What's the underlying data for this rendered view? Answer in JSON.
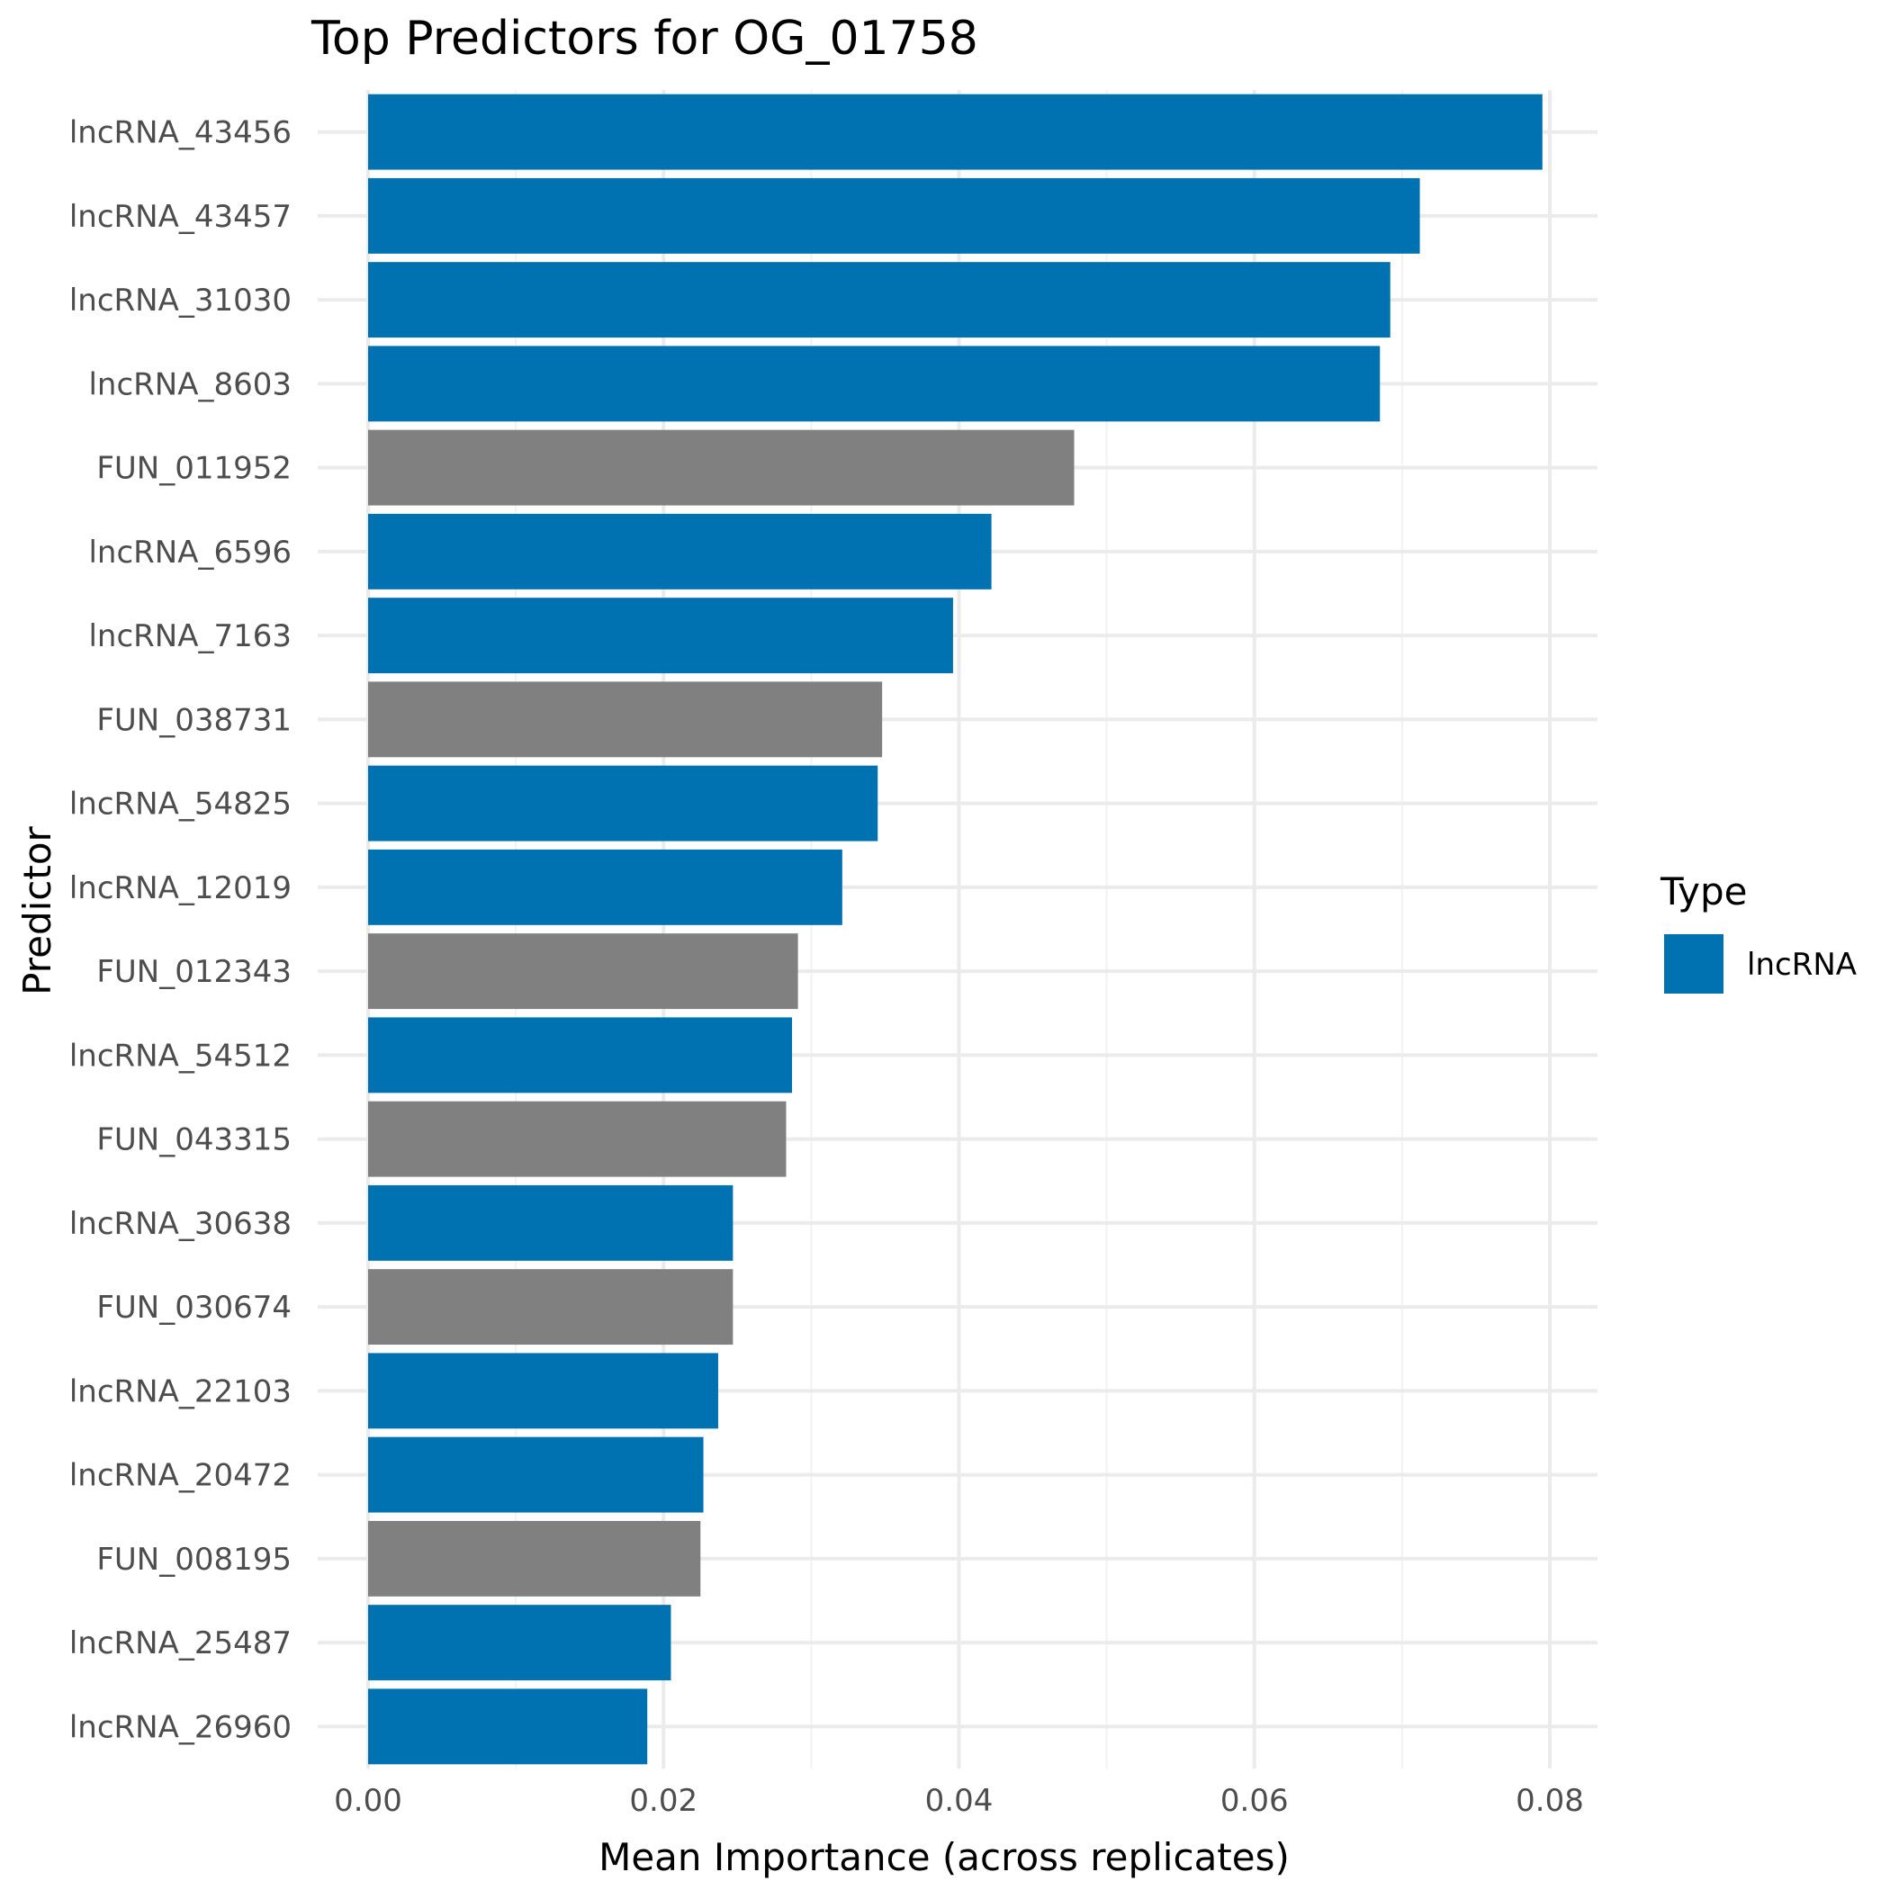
{
  "chart_data": {
    "type": "bar",
    "orientation": "horizontal",
    "title": "Top Predictors for OG_01758",
    "xlabel": "Mean Importance (across replicates)",
    "ylabel": "Predictor",
    "xlim": [
      0,
      0.08
    ],
    "x_ticks": [
      "0.00",
      "0.02",
      "0.04",
      "0.06",
      "0.08"
    ],
    "x_tick_values": [
      0,
      0.02,
      0.04,
      0.06,
      0.08
    ],
    "grid": true,
    "legend": {
      "title": "Type",
      "placement": "right",
      "entries": [
        {
          "label": "lncRNA",
          "color": "#0072B2"
        }
      ]
    },
    "colors": {
      "lncRNA": "#0072B2",
      "gene": "#808080"
    },
    "categories": [
      "lncRNA_43456",
      "lncRNA_43457",
      "lncRNA_31030",
      "lncRNA_8603",
      "FUN_011952",
      "lncRNA_6596",
      "lncRNA_7163",
      "FUN_038731",
      "lncRNA_54825",
      "lncRNA_12019",
      "FUN_012343",
      "lncRNA_54512",
      "FUN_043315",
      "lncRNA_30638",
      "FUN_030674",
      "lncRNA_22103",
      "lncRNA_20472",
      "FUN_008195",
      "lncRNA_25487",
      "lncRNA_26960"
    ],
    "values": [
      0.0795,
      0.0712,
      0.0692,
      0.0685,
      0.0478,
      0.0422,
      0.0396,
      0.0348,
      0.0345,
      0.0321,
      0.0291,
      0.0287,
      0.0283,
      0.0247,
      0.0247,
      0.0237,
      0.0227,
      0.0225,
      0.0205,
      0.0189
    ],
    "types": [
      "lncRNA",
      "lncRNA",
      "lncRNA",
      "lncRNA",
      "gene",
      "lncRNA",
      "lncRNA",
      "gene",
      "lncRNA",
      "lncRNA",
      "gene",
      "lncRNA",
      "gene",
      "lncRNA",
      "gene",
      "lncRNA",
      "lncRNA",
      "gene",
      "lncRNA",
      "lncRNA"
    ]
  }
}
